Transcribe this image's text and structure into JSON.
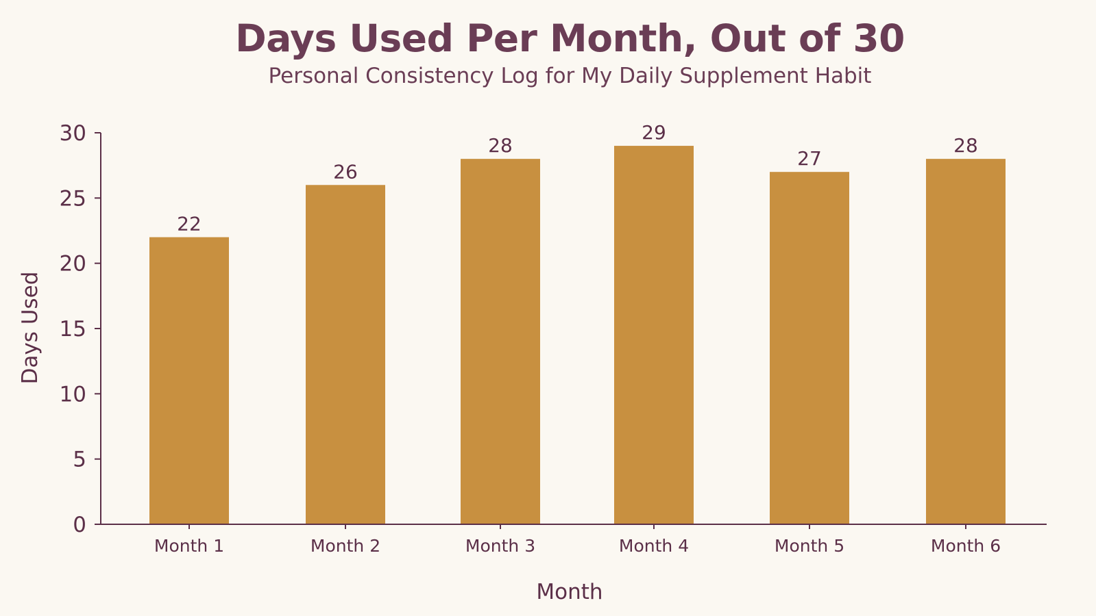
{
  "colors": {
    "background": "#fbf8f2",
    "bar": "#c89040",
    "text": "#5b2f48",
    "axis": "#5b2f48"
  },
  "chart_data": {
    "type": "bar",
    "title": "Days Used Per Month, Out of 30",
    "subtitle": "Personal Consistency Log for My Daily Supplement Habit",
    "xlabel": "Month",
    "ylabel": "Days Used",
    "categories": [
      "Month 1",
      "Month 2",
      "Month 3",
      "Month 4",
      "Month 5",
      "Month 6"
    ],
    "values": [
      22,
      26,
      28,
      29,
      27,
      28
    ],
    "data_labels": [
      "22",
      "26",
      "28",
      "29",
      "27",
      "28"
    ],
    "ylim": [
      0,
      30
    ],
    "yticks": [
      0,
      5,
      10,
      15,
      20,
      25,
      30
    ],
    "grid": false,
    "legend": "none"
  }
}
